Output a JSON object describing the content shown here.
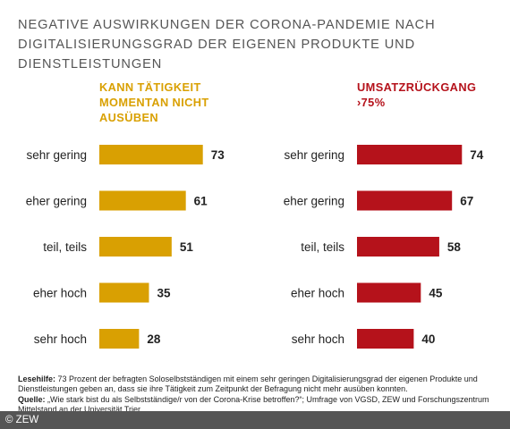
{
  "title": "NEGATIVE AUSWIRKUNGEN DER CORONA-PANDEMIE NACH DIGITALISIERUNGSGRAD DER EIGENEN PRODUKTE UND DIENSTLEISTUNGEN",
  "colors": {
    "left_series": "#d9a002",
    "right_series": "#b5121b",
    "title": "#555555",
    "footer_bar": "#555555"
  },
  "chart_data": [
    {
      "type": "bar",
      "orientation": "horizontal",
      "title": "KANN TÄTIGKEIT MOMENTAN NICHT AUSÜBEN",
      "title_lines": [
        "KANN TÄTIGKEIT",
        "MOMENTAN NICHT",
        "AUSÜBEN"
      ],
      "categories": [
        "sehr gering",
        "eher gering",
        "teil, teils",
        "eher hoch",
        "sehr hoch"
      ],
      "values": [
        73,
        61,
        51,
        35,
        28
      ],
      "color": "#d9a002"
    },
    {
      "type": "bar",
      "orientation": "horizontal",
      "title": "UMSATZRÜCKGANG >75%",
      "title_lines": [
        "UMSATZRÜCKGANG",
        "›75%"
      ],
      "categories": [
        "sehr gering",
        "eher gering",
        "teil, teils",
        "eher hoch",
        "sehr hoch"
      ],
      "values": [
        74,
        67,
        58,
        45,
        40
      ],
      "color": "#b5121b"
    }
  ],
  "footnote": {
    "lesehilfe_label": "Lesehilfe:",
    "lesehilfe_text": " 73 Prozent der befragten Soloselbstständigen mit einem sehr geringen Digitalisierungsgrad der eigenen Produkte und Dienstleistungen geben an, dass sie ihre Tätigkeit zum Zeitpunkt der Befragung nicht mehr ausüben konnten.",
    "quelle_label": "Quelle:",
    "quelle_text": " „Wie stark bist du als Selbstständige/r von der Corona-Krise betroffen?“; Umfrage von VGSD, ZEW und Forschungszentrum Mittelstand an der Universität Trier."
  },
  "copyright": "© ZEW"
}
